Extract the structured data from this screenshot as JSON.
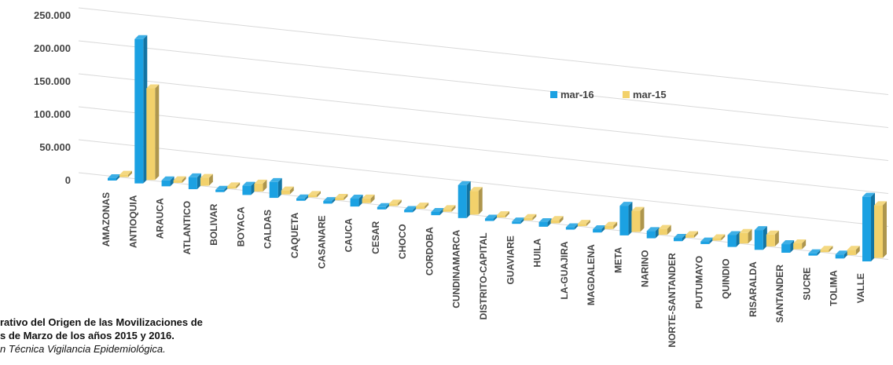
{
  "chart_data": {
    "type": "bar",
    "categories": [
      "AMAZONAS",
      "ANTIOQUIA",
      "ARAUCA",
      "ATLANTICO",
      "BOLIVAR",
      "BOYACA",
      "CALDAS",
      "CAQUETA",
      "CASANARE",
      "CAUCA",
      "CESAR",
      "CHOCO",
      "CORDOBA",
      "CUNDINAMARCA",
      "DISTRITO-CAPITAL",
      "GUAVIARE",
      "HUILA",
      "LA-GUAJIRA",
      "MAGDALENA",
      "META",
      "NARINO",
      "NORTE-SANTANDER",
      "PUTUMAYO",
      "QUINDIO",
      "RISARALDA",
      "SANTANDER",
      "SUCRE",
      "TOLIMA",
      "VALLE"
    ],
    "series": [
      {
        "name": "mar-16",
        "color": "#1BA1E2",
        "values": [
          1500,
          219000,
          9000,
          18000,
          3000,
          14000,
          24000,
          3500,
          4000,
          12000,
          2500,
          3000,
          5000,
          50000,
          3000,
          2500,
          7000,
          3000,
          5000,
          45000,
          11000,
          5000,
          4000,
          18000,
          30000,
          13000,
          3500,
          6000,
          98000
        ]
      },
      {
        "name": "mar-15",
        "color": "#F2D16B",
        "values": [
          1000,
          139000,
          4000,
          12000,
          2000,
          12000,
          6000,
          3500,
          3000,
          7000,
          2000,
          2500,
          4000,
          36000,
          2500,
          2500,
          5000,
          2500,
          5000,
          32000,
          9000,
          4000,
          3500,
          16000,
          18000,
          9000,
          3000,
          8000,
          80000
        ]
      }
    ],
    "yticks": [
      "0",
      "50.000",
      "100.000",
      "150.000",
      "200.000",
      "250.000"
    ],
    "ylim": [
      0,
      250000
    ],
    "legend": "right-middle",
    "grid": true
  },
  "caption": {
    "line1": "rativo del Origen de las Movilizaciones de",
    "line2": "s de Marzo de los años 2015 y 2016.",
    "line3": "n Técnica Vigilancia Epidemiológica."
  }
}
